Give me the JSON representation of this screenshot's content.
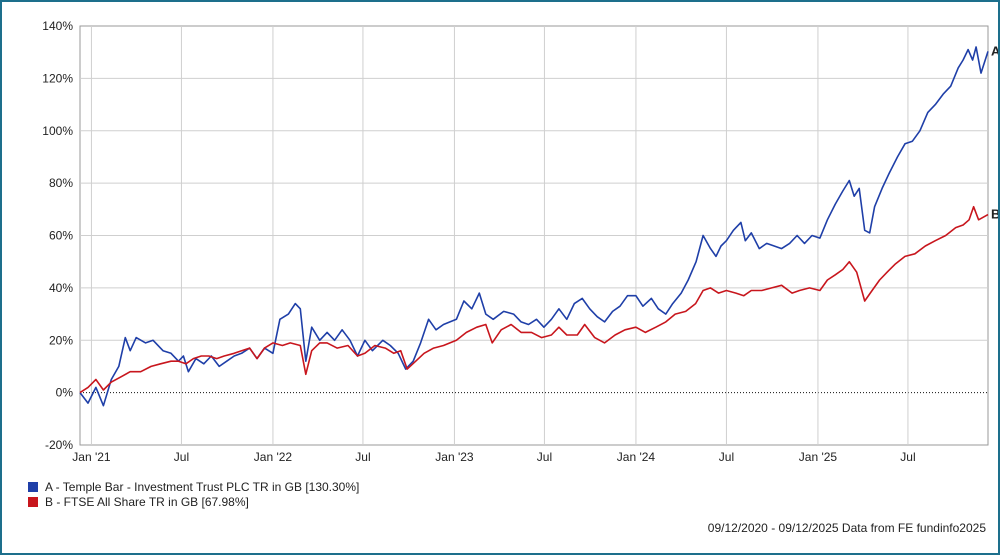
{
  "chart_data": {
    "type": "line",
    "xlabel": "",
    "ylabel": "",
    "y_ticks": [
      "140%",
      "120%",
      "100%",
      "80%",
      "60%",
      "40%",
      "20%",
      "0%",
      "-20%"
    ],
    "ylim": [
      -20,
      140
    ],
    "x_ticks": [
      "Jan '21",
      "Jul",
      "Jan '22",
      "Jul",
      "Jan '23",
      "Jul",
      "Jan '24",
      "Jul",
      "Jan '25",
      "Jul"
    ],
    "x_range": [
      "2020-12-09",
      "2025-12-09"
    ],
    "grid": true,
    "zero_line": "dotted",
    "series": [
      {
        "name": "A - Temple Bar - Investment Trust PLC TR in GB [130.30%]",
        "end_label": "A",
        "color": "#1f3fa8",
        "points": [
          [
            "2020-12-09",
            0
          ],
          [
            "2020-12-25",
            -4
          ],
          [
            "2021-01-10",
            2
          ],
          [
            "2021-01-25",
            -5
          ],
          [
            "2021-02-10",
            5
          ],
          [
            "2021-02-25",
            10
          ],
          [
            "2021-03-10",
            21
          ],
          [
            "2021-03-20",
            16
          ],
          [
            "2021-04-01",
            21
          ],
          [
            "2021-04-20",
            19
          ],
          [
            "2021-05-05",
            20
          ],
          [
            "2021-05-25",
            16
          ],
          [
            "2021-06-10",
            15
          ],
          [
            "2021-06-25",
            12
          ],
          [
            "2021-07-05",
            14
          ],
          [
            "2021-07-15",
            8
          ],
          [
            "2021-07-30",
            13
          ],
          [
            "2021-08-15",
            11
          ],
          [
            "2021-08-30",
            14
          ],
          [
            "2021-09-15",
            10
          ],
          [
            "2021-09-30",
            12
          ],
          [
            "2021-10-15",
            14
          ],
          [
            "2021-10-30",
            15
          ],
          [
            "2021-11-15",
            17
          ],
          [
            "2021-11-30",
            13
          ],
          [
            "2021-12-15",
            17
          ],
          [
            "2022-01-01",
            15
          ],
          [
            "2022-01-15",
            28
          ],
          [
            "2022-02-01",
            30
          ],
          [
            "2022-02-15",
            34
          ],
          [
            "2022-02-25",
            32
          ],
          [
            "2022-03-08",
            12
          ],
          [
            "2022-03-20",
            25
          ],
          [
            "2022-04-05",
            20
          ],
          [
            "2022-04-20",
            23
          ],
          [
            "2022-05-05",
            20
          ],
          [
            "2022-05-20",
            24
          ],
          [
            "2022-06-05",
            20
          ],
          [
            "2022-06-20",
            14
          ],
          [
            "2022-07-05",
            20
          ],
          [
            "2022-07-20",
            16
          ],
          [
            "2022-08-10",
            20
          ],
          [
            "2022-08-25",
            18
          ],
          [
            "2022-09-10",
            15
          ],
          [
            "2022-09-25",
            9
          ],
          [
            "2022-10-10",
            12
          ],
          [
            "2022-10-25",
            19
          ],
          [
            "2022-11-10",
            28
          ],
          [
            "2022-11-25",
            24
          ],
          [
            "2022-12-10",
            26
          ],
          [
            "2023-01-05",
            28
          ],
          [
            "2023-01-20",
            35
          ],
          [
            "2023-02-05",
            32
          ],
          [
            "2023-02-20",
            38
          ],
          [
            "2023-03-05",
            30
          ],
          [
            "2023-03-20",
            28
          ],
          [
            "2023-04-10",
            31
          ],
          [
            "2023-04-30",
            30
          ],
          [
            "2023-05-15",
            27
          ],
          [
            "2023-05-30",
            26
          ],
          [
            "2023-06-15",
            28
          ],
          [
            "2023-06-30",
            25
          ],
          [
            "2023-07-15",
            28
          ],
          [
            "2023-07-30",
            32
          ],
          [
            "2023-08-15",
            28
          ],
          [
            "2023-08-30",
            34
          ],
          [
            "2023-09-15",
            36
          ],
          [
            "2023-09-30",
            32
          ],
          [
            "2023-10-15",
            29
          ],
          [
            "2023-10-30",
            27
          ],
          [
            "2023-11-15",
            31
          ],
          [
            "2023-11-30",
            33
          ],
          [
            "2023-12-15",
            37
          ],
          [
            "2024-01-01",
            37
          ],
          [
            "2024-01-15",
            33
          ],
          [
            "2024-02-01",
            36
          ],
          [
            "2024-02-15",
            32
          ],
          [
            "2024-03-01",
            30
          ],
          [
            "2024-03-15",
            34
          ],
          [
            "2024-04-01",
            38
          ],
          [
            "2024-04-15",
            43
          ],
          [
            "2024-05-01",
            50
          ],
          [
            "2024-05-15",
            60
          ],
          [
            "2024-05-30",
            55
          ],
          [
            "2024-06-10",
            52
          ],
          [
            "2024-06-20",
            56
          ],
          [
            "2024-07-01",
            58
          ],
          [
            "2024-07-15",
            62
          ],
          [
            "2024-07-30",
            65
          ],
          [
            "2024-08-08",
            58
          ],
          [
            "2024-08-20",
            61
          ],
          [
            "2024-09-05",
            55
          ],
          [
            "2024-09-20",
            57
          ],
          [
            "2024-10-05",
            56
          ],
          [
            "2024-10-20",
            55
          ],
          [
            "2024-11-05",
            57
          ],
          [
            "2024-11-20",
            60
          ],
          [
            "2024-12-05",
            57
          ],
          [
            "2024-12-20",
            60
          ],
          [
            "2025-01-05",
            59
          ],
          [
            "2025-01-20",
            66
          ],
          [
            "2025-02-05",
            72
          ],
          [
            "2025-02-20",
            77
          ],
          [
            "2025-03-05",
            81
          ],
          [
            "2025-03-15",
            75
          ],
          [
            "2025-03-25",
            78
          ],
          [
            "2025-04-05",
            62
          ],
          [
            "2025-04-15",
            61
          ],
          [
            "2025-04-25",
            71
          ],
          [
            "2025-05-10",
            78
          ],
          [
            "2025-05-25",
            84
          ],
          [
            "2025-06-10",
            90
          ],
          [
            "2025-06-25",
            95
          ],
          [
            "2025-07-10",
            96
          ],
          [
            "2025-07-25",
            100
          ],
          [
            "2025-08-10",
            107
          ],
          [
            "2025-08-25",
            110
          ],
          [
            "2025-09-10",
            114
          ],
          [
            "2025-09-25",
            117
          ],
          [
            "2025-10-10",
            124
          ],
          [
            "2025-10-20",
            127
          ],
          [
            "2025-10-30",
            131
          ],
          [
            "2025-11-08",
            127
          ],
          [
            "2025-11-15",
            132
          ],
          [
            "2025-11-25",
            122
          ],
          [
            "2025-12-09",
            130.3
          ]
        ]
      },
      {
        "name": "B - FTSE All Share TR in GB [67.98%]",
        "end_label": "B",
        "color": "#c8161d",
        "points": [
          [
            "2020-12-09",
            0
          ],
          [
            "2020-12-25",
            2
          ],
          [
            "2021-01-10",
            5
          ],
          [
            "2021-01-25",
            1
          ],
          [
            "2021-02-10",
            4
          ],
          [
            "2021-03-01",
            6
          ],
          [
            "2021-03-20",
            8
          ],
          [
            "2021-04-10",
            8
          ],
          [
            "2021-05-01",
            10
          ],
          [
            "2021-05-20",
            11
          ],
          [
            "2021-06-10",
            12
          ],
          [
            "2021-06-25",
            12
          ],
          [
            "2021-07-10",
            11
          ],
          [
            "2021-07-25",
            13
          ],
          [
            "2021-08-10",
            14
          ],
          [
            "2021-08-25",
            14
          ],
          [
            "2021-09-10",
            13
          ],
          [
            "2021-09-25",
            14
          ],
          [
            "2021-10-15",
            15
          ],
          [
            "2021-10-30",
            16
          ],
          [
            "2021-11-15",
            17
          ],
          [
            "2021-11-30",
            13
          ],
          [
            "2021-12-15",
            17
          ],
          [
            "2022-01-01",
            19
          ],
          [
            "2022-01-20",
            18
          ],
          [
            "2022-02-05",
            19
          ],
          [
            "2022-02-25",
            18
          ],
          [
            "2022-03-08",
            7
          ],
          [
            "2022-03-20",
            16
          ],
          [
            "2022-04-05",
            19
          ],
          [
            "2022-04-20",
            19
          ],
          [
            "2022-05-10",
            17
          ],
          [
            "2022-06-01",
            18
          ],
          [
            "2022-06-20",
            14
          ],
          [
            "2022-07-05",
            15
          ],
          [
            "2022-07-25",
            18
          ],
          [
            "2022-08-15",
            17
          ],
          [
            "2022-09-01",
            15
          ],
          [
            "2022-09-15",
            16
          ],
          [
            "2022-09-28",
            9
          ],
          [
            "2022-10-15",
            12
          ],
          [
            "2022-11-01",
            15
          ],
          [
            "2022-11-20",
            17
          ],
          [
            "2022-12-10",
            18
          ],
          [
            "2023-01-05",
            20
          ],
          [
            "2023-01-25",
            23
          ],
          [
            "2023-02-15",
            25
          ],
          [
            "2023-03-05",
            26
          ],
          [
            "2023-03-18",
            19
          ],
          [
            "2023-04-05",
            24
          ],
          [
            "2023-04-25",
            26
          ],
          [
            "2023-05-15",
            23
          ],
          [
            "2023-06-05",
            23
          ],
          [
            "2023-06-25",
            21
          ],
          [
            "2023-07-15",
            22
          ],
          [
            "2023-07-30",
            25
          ],
          [
            "2023-08-15",
            22
          ],
          [
            "2023-09-05",
            22
          ],
          [
            "2023-09-20",
            26
          ],
          [
            "2023-10-10",
            21
          ],
          [
            "2023-10-30",
            19
          ],
          [
            "2023-11-20",
            22
          ],
          [
            "2023-12-10",
            24
          ],
          [
            "2024-01-01",
            25
          ],
          [
            "2024-01-20",
            23
          ],
          [
            "2024-02-10",
            25
          ],
          [
            "2024-03-01",
            27
          ],
          [
            "2024-03-20",
            30
          ],
          [
            "2024-04-10",
            31
          ],
          [
            "2024-04-30",
            34
          ],
          [
            "2024-05-15",
            39
          ],
          [
            "2024-05-30",
            40
          ],
          [
            "2024-06-15",
            38
          ],
          [
            "2024-07-01",
            39
          ],
          [
            "2024-07-20",
            38
          ],
          [
            "2024-08-05",
            37
          ],
          [
            "2024-08-20",
            39
          ],
          [
            "2024-09-10",
            39
          ],
          [
            "2024-09-30",
            40
          ],
          [
            "2024-10-20",
            41
          ],
          [
            "2024-11-10",
            38
          ],
          [
            "2024-11-25",
            39
          ],
          [
            "2024-12-15",
            40
          ],
          [
            "2025-01-05",
            39
          ],
          [
            "2025-01-20",
            43
          ],
          [
            "2025-02-05",
            45
          ],
          [
            "2025-02-20",
            47
          ],
          [
            "2025-03-05",
            50
          ],
          [
            "2025-03-20",
            46
          ],
          [
            "2025-04-05",
            35
          ],
          [
            "2025-04-20",
            39
          ],
          [
            "2025-05-05",
            43
          ],
          [
            "2025-05-20",
            46
          ],
          [
            "2025-06-05",
            49
          ],
          [
            "2025-06-25",
            52
          ],
          [
            "2025-07-15",
            53
          ],
          [
            "2025-08-05",
            56
          ],
          [
            "2025-08-25",
            58
          ],
          [
            "2025-09-15",
            60
          ],
          [
            "2025-10-05",
            63
          ],
          [
            "2025-10-20",
            64
          ],
          [
            "2025-11-01",
            66
          ],
          [
            "2025-11-10",
            71
          ],
          [
            "2025-11-20",
            66
          ],
          [
            "2025-12-09",
            67.98
          ]
        ]
      }
    ]
  },
  "source_text": "09/12/2020 - 09/12/2025 Data from FE fundinfo2025"
}
